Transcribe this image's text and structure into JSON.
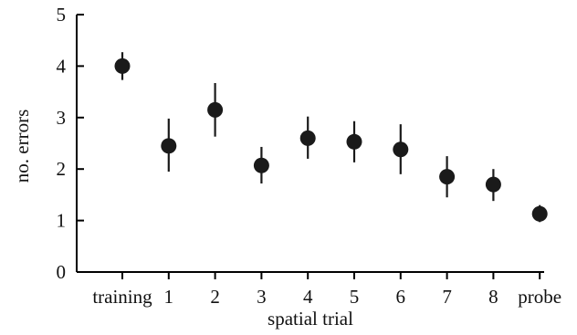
{
  "chart_data": {
    "type": "scatter",
    "xlabel": "spatial trial",
    "ylabel": "no. errors",
    "categories": [
      "training",
      "1",
      "2",
      "3",
      "4",
      "5",
      "6",
      "7",
      "8",
      "probe"
    ],
    "values": [
      4.0,
      2.45,
      3.15,
      2.07,
      2.6,
      2.53,
      2.38,
      1.85,
      1.7,
      1.13
    ],
    "error_low": [
      3.73,
      1.95,
      2.63,
      1.72,
      2.2,
      2.13,
      1.9,
      1.45,
      1.38,
      0.97
    ],
    "error_high": [
      4.27,
      2.98,
      3.67,
      2.43,
      3.02,
      2.93,
      2.87,
      2.25,
      2.0,
      1.3
    ],
    "ylim": [
      0,
      5
    ],
    "yticks": [
      0,
      1,
      2,
      3,
      4,
      5
    ],
    "grid": false,
    "legend": "none",
    "marker_color": "#1a1a1a"
  }
}
